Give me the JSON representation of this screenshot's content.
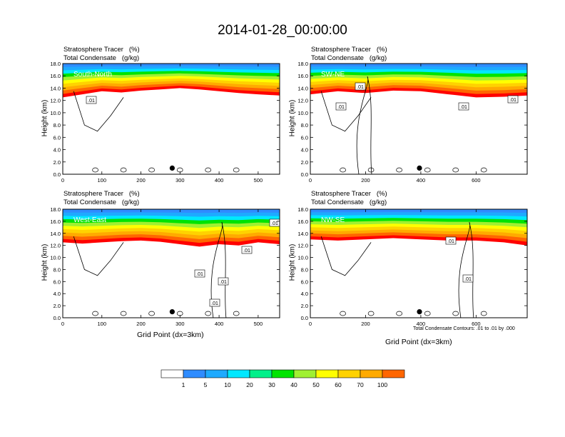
{
  "title": "2014-01-28_00:00:00",
  "note": "Total Condensate Contours: .01 to .01 by .000",
  "colorbar": {
    "levels": [
      "1",
      "5",
      "10",
      "20",
      "30",
      "40",
      "50",
      "60",
      "70",
      "100"
    ],
    "colors": [
      "#ffffff",
      "#2f8cff",
      "#1eaaff",
      "#00e8ff",
      "#00f08a",
      "#00e400",
      "#a0f032",
      "#ffff00",
      "#ffd200",
      "#ffaa00",
      "#ff6600",
      "#ff0000"
    ]
  },
  "chart_data": [
    {
      "type": "contour",
      "title": "Stratosphere Tracer   (%)",
      "subtitle": "Total Condensate   (g/kg)",
      "panel_label": "South-North",
      "ylabel": "Height (km)",
      "xlabel": "",
      "xlim": [
        0,
        555
      ],
      "ylim": [
        0,
        18
      ],
      "xticks": [
        "0",
        "100",
        "200",
        "300",
        "400",
        "500"
      ],
      "yticks": [
        "0.0",
        "2.0",
        "4.0",
        "6.0",
        "8.0",
        "10.0",
        "12.0",
        "14.0",
        "16.0",
        "18.0"
      ],
      "contour_labels": [
        ".01"
      ],
      "tracer_bottom_km": {
        "x": [
          0,
          50,
          100,
          150,
          200,
          250,
          300,
          350,
          400,
          450,
          500,
          555
        ],
        "y": [
          12.5,
          13.0,
          13.5,
          13.3,
          13.6,
          13.8,
          14.0,
          13.8,
          13.5,
          13.2,
          13.0,
          12.8
        ]
      },
      "marker_x": 280
    },
    {
      "type": "contour",
      "title": "Stratosphere Tracer   (%)",
      "subtitle": "Total Condensate   (g/kg)",
      "panel_label": "SW-NE",
      "ylabel": "Height (km)",
      "xlabel": "",
      "xlim": [
        0,
        785
      ],
      "ylim": [
        0,
        18
      ],
      "xticks": [
        "0",
        "200",
        "400",
        "600"
      ],
      "yticks": [
        "0.0",
        "2.0",
        "4.0",
        "6.0",
        "8.0",
        "10.0",
        "12.0",
        "14.0",
        "16.0",
        "18.0"
      ],
      "contour_labels": [
        ".01",
        ".01",
        ".01",
        ".01"
      ],
      "tracer_bottom_km": {
        "x": [
          0,
          100,
          200,
          300,
          400,
          500,
          600,
          700,
          785
        ],
        "y": [
          13.0,
          13.5,
          13.2,
          13.6,
          13.5,
          13.0,
          12.5,
          12.6,
          12.8
        ]
      },
      "marker_x": 395
    },
    {
      "type": "contour",
      "title": "Stratosphere Tracer   (%)",
      "subtitle": "Total Condensate   (g/kg)",
      "panel_label": "West-East",
      "ylabel": "Height (km)",
      "xlabel": "Grid Point (dx=3km)",
      "xlim": [
        0,
        555
      ],
      "ylim": [
        0,
        18
      ],
      "xticks": [
        "0",
        "100",
        "200",
        "300",
        "400",
        "500"
      ],
      "yticks": [
        "0.0",
        "2.0",
        "4.0",
        "6.0",
        "8.0",
        "10.0",
        "12.0",
        "14.0",
        "16.0",
        "18.0"
      ],
      "contour_labels": [
        ".01",
        ".01",
        ".01",
        ".01",
        ".01"
      ],
      "tracer_bottom_km": {
        "x": [
          0,
          50,
          100,
          150,
          200,
          250,
          300,
          350,
          400,
          450,
          500,
          555
        ],
        "y": [
          12.5,
          12.3,
          12.5,
          12.7,
          12.8,
          12.6,
          12.2,
          11.8,
          12.2,
          12.0,
          12.5,
          12.2
        ]
      },
      "marker_x": 280
    },
    {
      "type": "contour",
      "title": "Stratosphere Tracer   (%)",
      "subtitle": "Total Condensate   (g/kg)",
      "panel_label": "NW-SE",
      "ylabel": "Height (km)",
      "xlabel": "Grid Point (dx=3km)",
      "xlim": [
        0,
        785
      ],
      "ylim": [
        0,
        18
      ],
      "xticks": [
        "0",
        "200",
        "400",
        "600"
      ],
      "yticks": [
        "0.0",
        "2.0",
        "4.0",
        "6.0",
        "8.0",
        "10.0",
        "12.0",
        "14.0",
        "16.0",
        "18.0"
      ],
      "contour_labels": [
        ".01",
        ".01"
      ],
      "tracer_bottom_km": {
        "x": [
          0,
          100,
          200,
          300,
          400,
          500,
          600,
          700,
          785
        ],
        "y": [
          13.0,
          12.8,
          13.0,
          13.2,
          13.0,
          12.8,
          12.8,
          12.5,
          12.0
        ]
      },
      "marker_x": 395
    }
  ]
}
